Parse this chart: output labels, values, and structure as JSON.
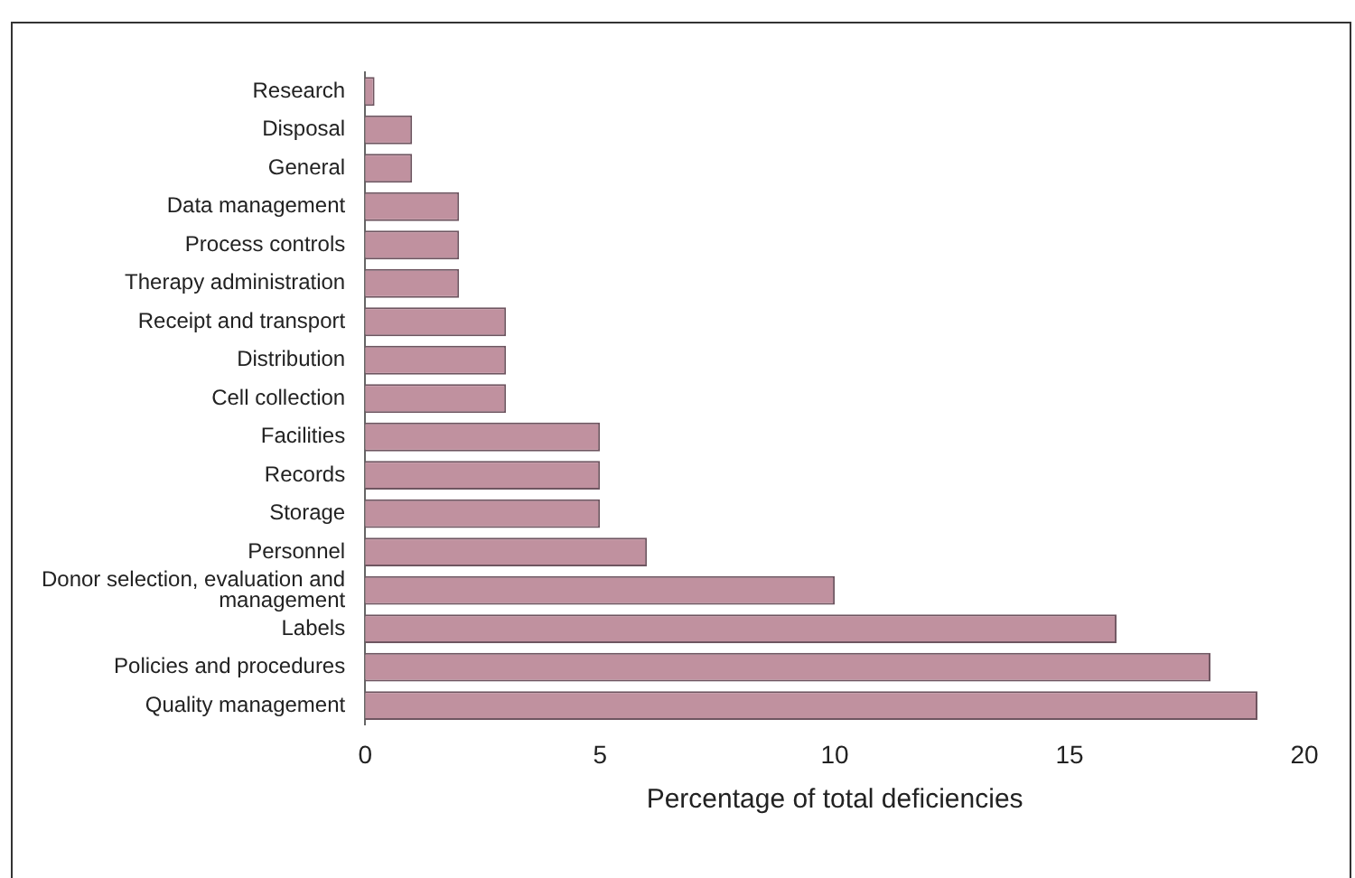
{
  "chart_data": {
    "type": "bar",
    "orientation": "horizontal",
    "xlabel": "Percentage of total deficiencies",
    "categories": [
      "Research",
      "Disposal",
      "General",
      "Data management",
      "Process controls",
      "Therapy administration",
      "Receipt and transport",
      "Distribution",
      "Cell collection",
      "Facilities",
      "Records",
      "Storage",
      "Personnel",
      "Donor selection, evaluation and management",
      "Labels",
      "Policies and procedures",
      "Quality management"
    ],
    "values": [
      0.2,
      1,
      1,
      2,
      2,
      2,
      3,
      3,
      3,
      5,
      5,
      5,
      6,
      10,
      16,
      18,
      19
    ],
    "color": "#c0919f",
    "xlim": [
      0,
      20
    ],
    "xticks": [
      0,
      5,
      10,
      15,
      20
    ],
    "grid": false,
    "legend": false
  }
}
